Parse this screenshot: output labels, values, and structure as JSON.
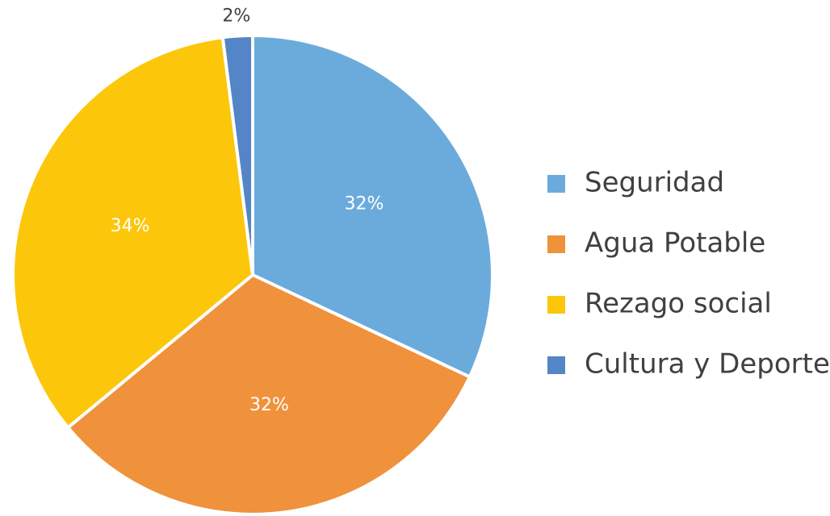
{
  "chart_data": {
    "type": "pie",
    "categories": [
      "Seguridad",
      "Agua Potable",
      "Rezago social",
      "Cultura y Deporte"
    ],
    "values": [
      32,
      32,
      34,
      2
    ],
    "value_labels": [
      "32%",
      "32%",
      "34%",
      "2%"
    ],
    "colors": [
      "#6aabdc",
      "#f0913c",
      "#fcc60a",
      "#5485c6"
    ],
    "legend": "right"
  }
}
